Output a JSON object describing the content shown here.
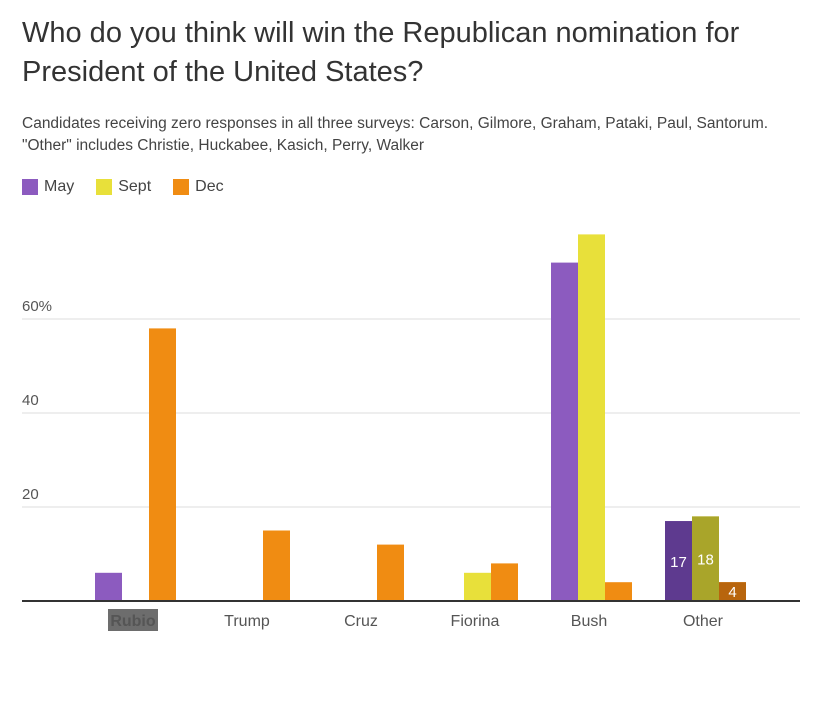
{
  "colors": {
    "May": "#8c5bbf",
    "Sept": "#e8e03a",
    "Dec": "#f08c12",
    "grid": "#dcdcdc",
    "axis": "#333333"
  },
  "chart_data": {
    "type": "bar",
    "title": "Who do you think will win the Republican nomination for President of the United States?",
    "subtitle": "Candidates receiving zero responses in all three surveys: Carson, Gilmore, Graham, Pataki, Paul, Santorum. \"Other\" includes Christie, Huckabee, Kasich, Perry, Walker",
    "categories": [
      "Rubio",
      "Trump",
      "Cruz",
      "Fiorina",
      "Bush",
      "Other"
    ],
    "series": [
      {
        "name": "May",
        "values": [
          6,
          0,
          0,
          0,
          72,
          17
        ]
      },
      {
        "name": "Sept",
        "values": [
          0,
          0,
          0,
          6,
          78,
          18
        ]
      },
      {
        "name": "Dec",
        "values": [
          58,
          15,
          12,
          8,
          4,
          4
        ]
      }
    ],
    "ylim": [
      0,
      80
    ],
    "yticks": [
      20,
      40,
      60
    ],
    "ytick_labels": [
      "20",
      "40",
      "60%"
    ],
    "data_labels": [
      {
        "category": "Other",
        "series": "May",
        "text": "17"
      },
      {
        "category": "Other",
        "series": "Sept",
        "text": "18"
      },
      {
        "category": "Other",
        "series": "Dec",
        "text": "4"
      }
    ],
    "highlighted_category": "Rubio",
    "grid": true,
    "legend": "top-left"
  }
}
